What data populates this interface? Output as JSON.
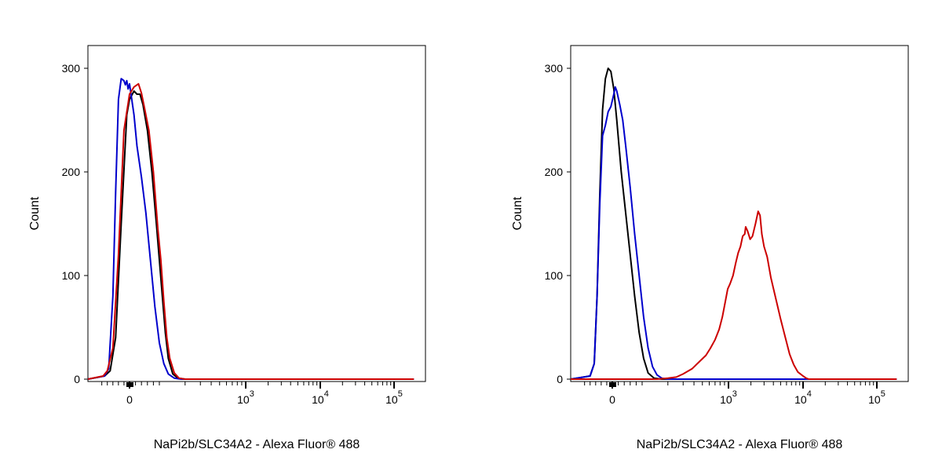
{
  "chart_data": [
    {
      "type": "line",
      "xlabel": "NaPi2b/SLC34A2 - Alexa Fluor® 488",
      "ylabel": "Count",
      "ylim": [
        0,
        320
      ],
      "x_scale": "biexponential (linear near 0, log above 10^3)",
      "x_ticks": [
        {
          "base": "0",
          "exp": ""
        },
        {
          "base": "10",
          "exp": "3"
        },
        {
          "base": "10",
          "exp": "4"
        },
        {
          "base": "10",
          "exp": "5"
        }
      ],
      "y_ticks": [
        0,
        100,
        200,
        300
      ],
      "grid": false,
      "series": [
        {
          "color": "#000000",
          "points": [
            [
              -150,
              0
            ],
            [
              -90,
              3
            ],
            [
              -70,
              8
            ],
            [
              -50,
              40
            ],
            [
              -30,
              150
            ],
            [
              -10,
              255
            ],
            [
              0,
              270
            ],
            [
              15,
              278
            ],
            [
              25,
              275
            ],
            [
              35,
              275
            ],
            [
              45,
              265
            ],
            [
              60,
              240
            ],
            [
              75,
              200
            ],
            [
              90,
              150
            ],
            [
              100,
              115
            ],
            [
              110,
              80
            ],
            [
              120,
              45
            ],
            [
              130,
              20
            ],
            [
              145,
              5
            ],
            [
              165,
              1
            ],
            [
              200,
              0
            ],
            [
              200000,
              0
            ]
          ]
        },
        {
          "color": "#0000cc",
          "points": [
            [
              -150,
              0
            ],
            [
              -90,
              3
            ],
            [
              -75,
              10
            ],
            [
              -60,
              80
            ],
            [
              -50,
              180
            ],
            [
              -40,
              270
            ],
            [
              -30,
              290
            ],
            [
              -20,
              288
            ],
            [
              -15,
              284
            ],
            [
              -10,
              288
            ],
            [
              -5,
              280
            ],
            [
              0,
              285
            ],
            [
              5,
              275
            ],
            [
              15,
              255
            ],
            [
              25,
              225
            ],
            [
              40,
              195
            ],
            [
              55,
              160
            ],
            [
              70,
              115
            ],
            [
              85,
              70
            ],
            [
              100,
              35
            ],
            [
              115,
              15
            ],
            [
              130,
              5
            ],
            [
              150,
              1
            ],
            [
              180,
              0
            ],
            [
              200000,
              0
            ]
          ]
        },
        {
          "color": "#cc0000",
          "points": [
            [
              -150,
              0
            ],
            [
              -95,
              3
            ],
            [
              -80,
              8
            ],
            [
              -60,
              30
            ],
            [
              -40,
              120
            ],
            [
              -20,
              240
            ],
            [
              0,
              275
            ],
            [
              15,
              282
            ],
            [
              30,
              285
            ],
            [
              40,
              276
            ],
            [
              50,
              262
            ],
            [
              65,
              240
            ],
            [
              80,
              200
            ],
            [
              95,
              145
            ],
            [
              105,
              115
            ],
            [
              115,
              75
            ],
            [
              125,
              40
            ],
            [
              135,
              20
            ],
            [
              150,
              6
            ],
            [
              170,
              1
            ],
            [
              200,
              0
            ],
            [
              200000,
              0
            ]
          ]
        }
      ]
    },
    {
      "type": "line",
      "xlabel": "NaPi2b/SLC34A2 - Alexa Fluor® 488",
      "ylabel": "Count",
      "ylim": [
        0,
        320
      ],
      "x_scale": "biexponential (linear near 0, log above 10^3)",
      "x_ticks": [
        {
          "base": "0",
          "exp": ""
        },
        {
          "base": "10",
          "exp": "3"
        },
        {
          "base": "10",
          "exp": "4"
        },
        {
          "base": "10",
          "exp": "5"
        }
      ],
      "y_ticks": [
        0,
        100,
        200,
        300
      ],
      "grid": false,
      "series": [
        {
          "color": "#000000",
          "points": [
            [
              -150,
              0
            ],
            [
              -80,
              3
            ],
            [
              -65,
              15
            ],
            [
              -55,
              80
            ],
            [
              -45,
              180
            ],
            [
              -35,
              260
            ],
            [
              -25,
              290
            ],
            [
              -15,
              300
            ],
            [
              -5,
              297
            ],
            [
              5,
              280
            ],
            [
              15,
              250
            ],
            [
              30,
              200
            ],
            [
              45,
              160
            ],
            [
              60,
              120
            ],
            [
              75,
              80
            ],
            [
              90,
              45
            ],
            [
              105,
              20
            ],
            [
              120,
              6
            ],
            [
              140,
              1
            ],
            [
              170,
              0
            ],
            [
              200000,
              0
            ]
          ]
        },
        {
          "color": "#0000cc",
          "points": [
            [
              -150,
              0
            ],
            [
              -80,
              3
            ],
            [
              -65,
              15
            ],
            [
              -55,
              80
            ],
            [
              -45,
              170
            ],
            [
              -35,
              235
            ],
            [
              -25,
              245
            ],
            [
              -15,
              258
            ],
            [
              -5,
              263
            ],
            [
              5,
              275
            ],
            [
              10,
              282
            ],
            [
              15,
              278
            ],
            [
              25,
              265
            ],
            [
              35,
              250
            ],
            [
              45,
              225
            ],
            [
              60,
              185
            ],
            [
              75,
              140
            ],
            [
              90,
              100
            ],
            [
              105,
              60
            ],
            [
              120,
              30
            ],
            [
              135,
              12
            ],
            [
              150,
              4
            ],
            [
              170,
              1
            ],
            [
              200,
              0
            ],
            [
              200000,
              0
            ]
          ]
        },
        {
          "color": "#cc0000",
          "points": [
            [
              -150,
              0
            ],
            [
              150,
              0
            ],
            [
              200,
              1
            ],
            [
              250,
              2
            ],
            [
              300,
              5
            ],
            [
              380,
              10
            ],
            [
              450,
              16
            ],
            [
              550,
              23
            ],
            [
              620,
              30
            ],
            [
              700,
              38
            ],
            [
              780,
              48
            ],
            [
              850,
              60
            ],
            [
              920,
              75
            ],
            [
              980,
              87
            ],
            [
              1050,
              92
            ],
            [
              1150,
              100
            ],
            [
              1250,
              112
            ],
            [
              1350,
              122
            ],
            [
              1450,
              128
            ],
            [
              1550,
              138
            ],
            [
              1650,
              140
            ],
            [
              1700,
              147
            ],
            [
              1800,
              143
            ],
            [
              1950,
              135
            ],
            [
              2100,
              138
            ],
            [
              2300,
              150
            ],
            [
              2500,
              162
            ],
            [
              2650,
              158
            ],
            [
              2800,
              140
            ],
            [
              3000,
              128
            ],
            [
              3300,
              118
            ],
            [
              3700,
              98
            ],
            [
              4300,
              78
            ],
            [
              5000,
              58
            ],
            [
              5800,
              40
            ],
            [
              6600,
              24
            ],
            [
              7500,
              14
            ],
            [
              8500,
              7
            ],
            [
              10000,
              3
            ],
            [
              11000,
              1
            ],
            [
              12000,
              0
            ],
            [
              200000,
              0
            ]
          ]
        }
      ]
    }
  ]
}
